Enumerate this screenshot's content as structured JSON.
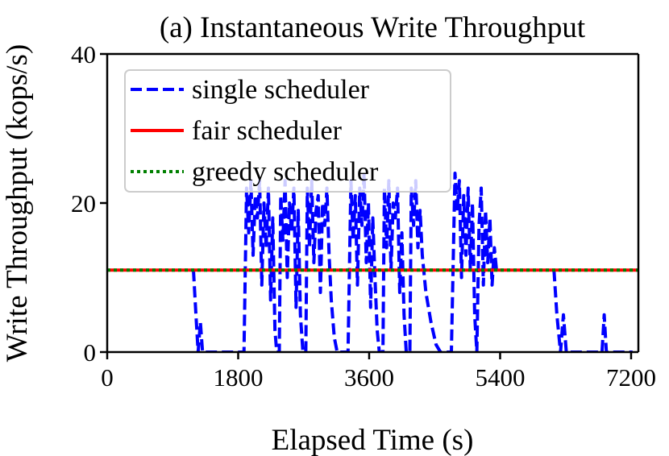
{
  "chart_data": {
    "type": "line",
    "title": "(a) Instantaneous Write Throughput",
    "xlabel": "Elapsed Time (s)",
    "ylabel": "Write Throughput (kops/s)",
    "xlim": [
      0,
      7300
    ],
    "ylim": [
      0,
      40
    ],
    "xticks": [
      0,
      1800,
      3600,
      5400,
      7200
    ],
    "xtick_labels": [
      "0",
      "1800",
      "3600",
      "5400",
      "7200"
    ],
    "yticks": [
      0,
      20,
      40
    ],
    "ytick_labels": [
      "0",
      "20",
      "40"
    ],
    "grid": false,
    "legend_position": "upper-left",
    "series": [
      {
        "name": "single scheduler",
        "color": "#0000ff",
        "style": "dashed",
        "points": [
          [
            1185,
            11
          ],
          [
            1220,
            5
          ],
          [
            1250,
            0
          ],
          [
            1280,
            4
          ],
          [
            1310,
            0
          ],
          [
            1350,
            0
          ],
          [
            1600,
            0
          ],
          [
            1880,
            0
          ],
          [
            1915,
            22
          ],
          [
            1945,
            16
          ],
          [
            1975,
            23
          ],
          [
            2005,
            13
          ],
          [
            2035,
            21
          ],
          [
            2065,
            18
          ],
          [
            2095,
            23
          ],
          [
            2125,
            9
          ],
          [
            2155,
            20
          ],
          [
            2185,
            14
          ],
          [
            2215,
            22
          ],
          [
            2245,
            7
          ],
          [
            2275,
            18
          ],
          [
            2305,
            3
          ],
          [
            2330,
            0
          ],
          [
            2365,
            0
          ],
          [
            2385,
            21
          ],
          [
            2415,
            15
          ],
          [
            2445,
            23
          ],
          [
            2475,
            10
          ],
          [
            2505,
            20
          ],
          [
            2535,
            16
          ],
          [
            2565,
            22
          ],
          [
            2595,
            6
          ],
          [
            2625,
            19
          ],
          [
            2655,
            5
          ],
          [
            2690,
            0
          ],
          [
            2730,
            0
          ],
          [
            2750,
            22
          ],
          [
            2780,
            14
          ],
          [
            2810,
            23
          ],
          [
            2840,
            12
          ],
          [
            2870,
            19
          ],
          [
            2900,
            21
          ],
          [
            2930,
            8
          ],
          [
            2960,
            20
          ],
          [
            2990,
            17
          ],
          [
            3020,
            22
          ],
          [
            3050,
            13
          ],
          [
            3080,
            7
          ],
          [
            3120,
            2
          ],
          [
            3160,
            0
          ],
          [
            3310,
            0
          ],
          [
            3350,
            23
          ],
          [
            3380,
            15
          ],
          [
            3410,
            21
          ],
          [
            3440,
            9
          ],
          [
            3470,
            22
          ],
          [
            3500,
            17
          ],
          [
            3530,
            24
          ],
          [
            3560,
            12
          ],
          [
            3590,
            20
          ],
          [
            3620,
            6
          ],
          [
            3650,
            18
          ],
          [
            3680,
            10
          ],
          [
            3710,
            3
          ],
          [
            3740,
            0
          ],
          [
            3790,
            0
          ],
          [
            3810,
            22
          ],
          [
            3840,
            14
          ],
          [
            3870,
            23
          ],
          [
            3900,
            11
          ],
          [
            3930,
            20
          ],
          [
            3960,
            18
          ],
          [
            3990,
            22
          ],
          [
            4020,
            8
          ],
          [
            4050,
            16
          ],
          [
            4080,
            5
          ],
          [
            4110,
            0
          ],
          [
            4160,
            0
          ],
          [
            4180,
            22
          ],
          [
            4210,
            17
          ],
          [
            4240,
            23
          ],
          [
            4270,
            14
          ],
          [
            4300,
            19
          ],
          [
            4330,
            13
          ],
          [
            4380,
            8
          ],
          [
            4450,
            4
          ],
          [
            4520,
            1
          ],
          [
            4580,
            0
          ],
          [
            4730,
            0
          ],
          [
            4780,
            24
          ],
          [
            4810,
            19
          ],
          [
            4840,
            23
          ],
          [
            4870,
            10
          ],
          [
            4900,
            21
          ],
          [
            4930,
            13
          ],
          [
            4960,
            22
          ],
          [
            4990,
            11
          ],
          [
            5020,
            20
          ],
          [
            5050,
            5
          ],
          [
            5080,
            0
          ],
          [
            5110,
            17
          ],
          [
            5140,
            22
          ],
          [
            5170,
            9
          ],
          [
            5200,
            19
          ],
          [
            5230,
            12
          ],
          [
            5260,
            18
          ],
          [
            5290,
            9
          ],
          [
            5320,
            14
          ],
          [
            5350,
            11
          ],
          null,
          [
            6140,
            11
          ],
          [
            6180,
            5
          ],
          [
            6230,
            0
          ],
          [
            6270,
            5
          ],
          [
            6310,
            0
          ],
          [
            6500,
            0
          ],
          [
            6800,
            0
          ],
          [
            6830,
            5
          ],
          [
            6860,
            0
          ],
          [
            7220,
            0
          ]
        ]
      },
      {
        "name": "fair scheduler",
        "color": "#ff0000",
        "style": "solid",
        "points": [
          [
            0,
            11
          ],
          [
            7300,
            11
          ]
        ]
      },
      {
        "name": "greedy scheduler",
        "color": "#008000",
        "style": "dotted",
        "points": [
          [
            0,
            11
          ],
          [
            7300,
            11
          ]
        ]
      }
    ]
  }
}
